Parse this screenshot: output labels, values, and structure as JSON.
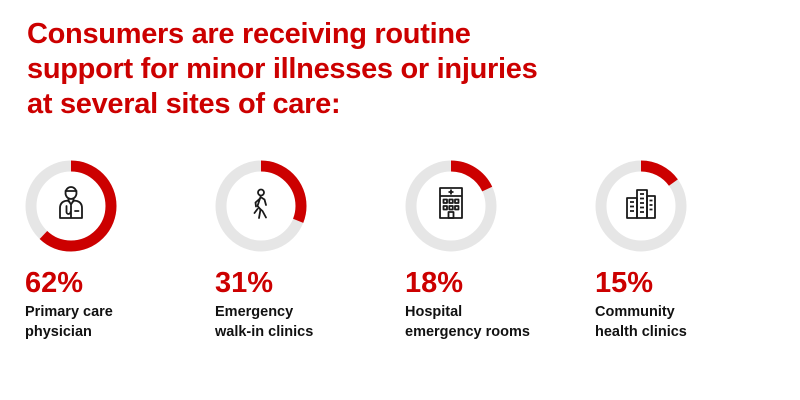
{
  "headline": {
    "lines": [
      "Consumers are receiving routine",
      "support for minor illnesses or injuries",
      "at several sites of care:"
    ]
  },
  "colors": {
    "accent": "#cc0000",
    "track": "#e6e6e6",
    "text": "#111111",
    "icon": "#1a1a1a"
  },
  "chart_data": {
    "type": "donut",
    "title": "Consumers are receiving routine support for minor illnesses or injuries at several sites of care:",
    "unit": "%",
    "items": [
      {
        "value": 62,
        "display": "62%",
        "label_lines": [
          "Primary care",
          "physician"
        ],
        "icon": "doctor-icon"
      },
      {
        "value": 31,
        "display": "31%",
        "label_lines": [
          "Emergency",
          "walk-in clinics"
        ],
        "icon": "walking-person-icon"
      },
      {
        "value": 18,
        "display": "18%",
        "label_lines": [
          "Hospital",
          "emergency rooms"
        ],
        "icon": "hospital-building-icon"
      },
      {
        "value": 15,
        "display": "15%",
        "label_lines": [
          "Community",
          "health clinics"
        ],
        "icon": "clinic-buildings-icon"
      }
    ]
  }
}
